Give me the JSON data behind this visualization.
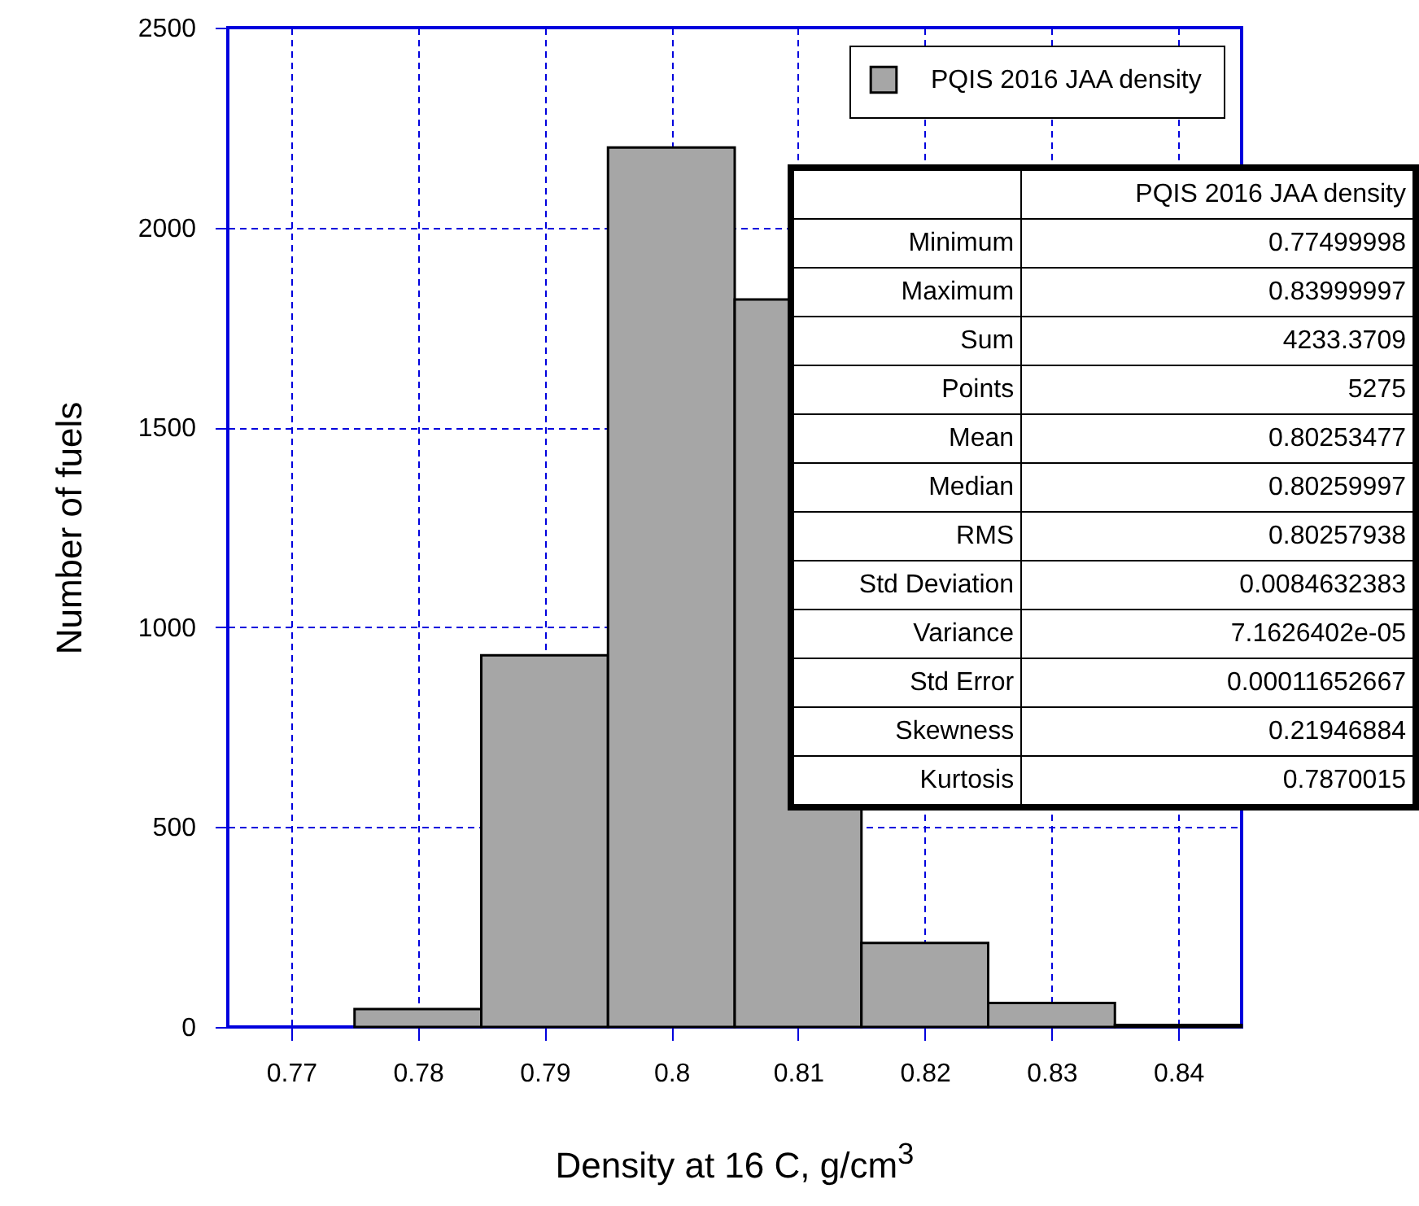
{
  "chart_data": {
    "type": "histogram",
    "xlabel": "Density at 16 C, g/cm$^{3}$",
    "ylabel": "Number of fuels",
    "bins": [
      0.775,
      0.785,
      0.795,
      0.805,
      0.815,
      0.825,
      0.835,
      0.845
    ],
    "series": [
      {
        "name": "PQIS 2016 JAA density",
        "color": "#a6a6a6",
        "values": [
          45,
          930,
          2200,
          1820,
          210,
          60,
          5
        ]
      }
    ],
    "xlim": [
      0.765,
      0.845
    ],
    "xticks": [
      0.77,
      0.78,
      0.79,
      0.8,
      0.81,
      0.82,
      0.83,
      0.84
    ],
    "ylim": [
      0,
      2500
    ],
    "yticks": [
      0,
      500,
      1000,
      1500,
      2000,
      2500
    ],
    "grid": true,
    "legend": "top right",
    "annotations": [
      "PQIS 2016 JAA density",
      "Minimum",
      "0.77499998",
      "Maximum",
      "0.83999997",
      "Sum",
      "4233.3709",
      "Points",
      "5275",
      "Mean",
      "0.80253477",
      "Median",
      "0.80259997",
      "RMS",
      "0.80257938",
      "Std Deviation",
      "0.0084632383",
      "Variance",
      "7.1626402e-05",
      "Std Error",
      "0.00011652667",
      "Skewness",
      "0.21946884",
      "Kurtosis",
      "0.7870015"
    ]
  }
}
